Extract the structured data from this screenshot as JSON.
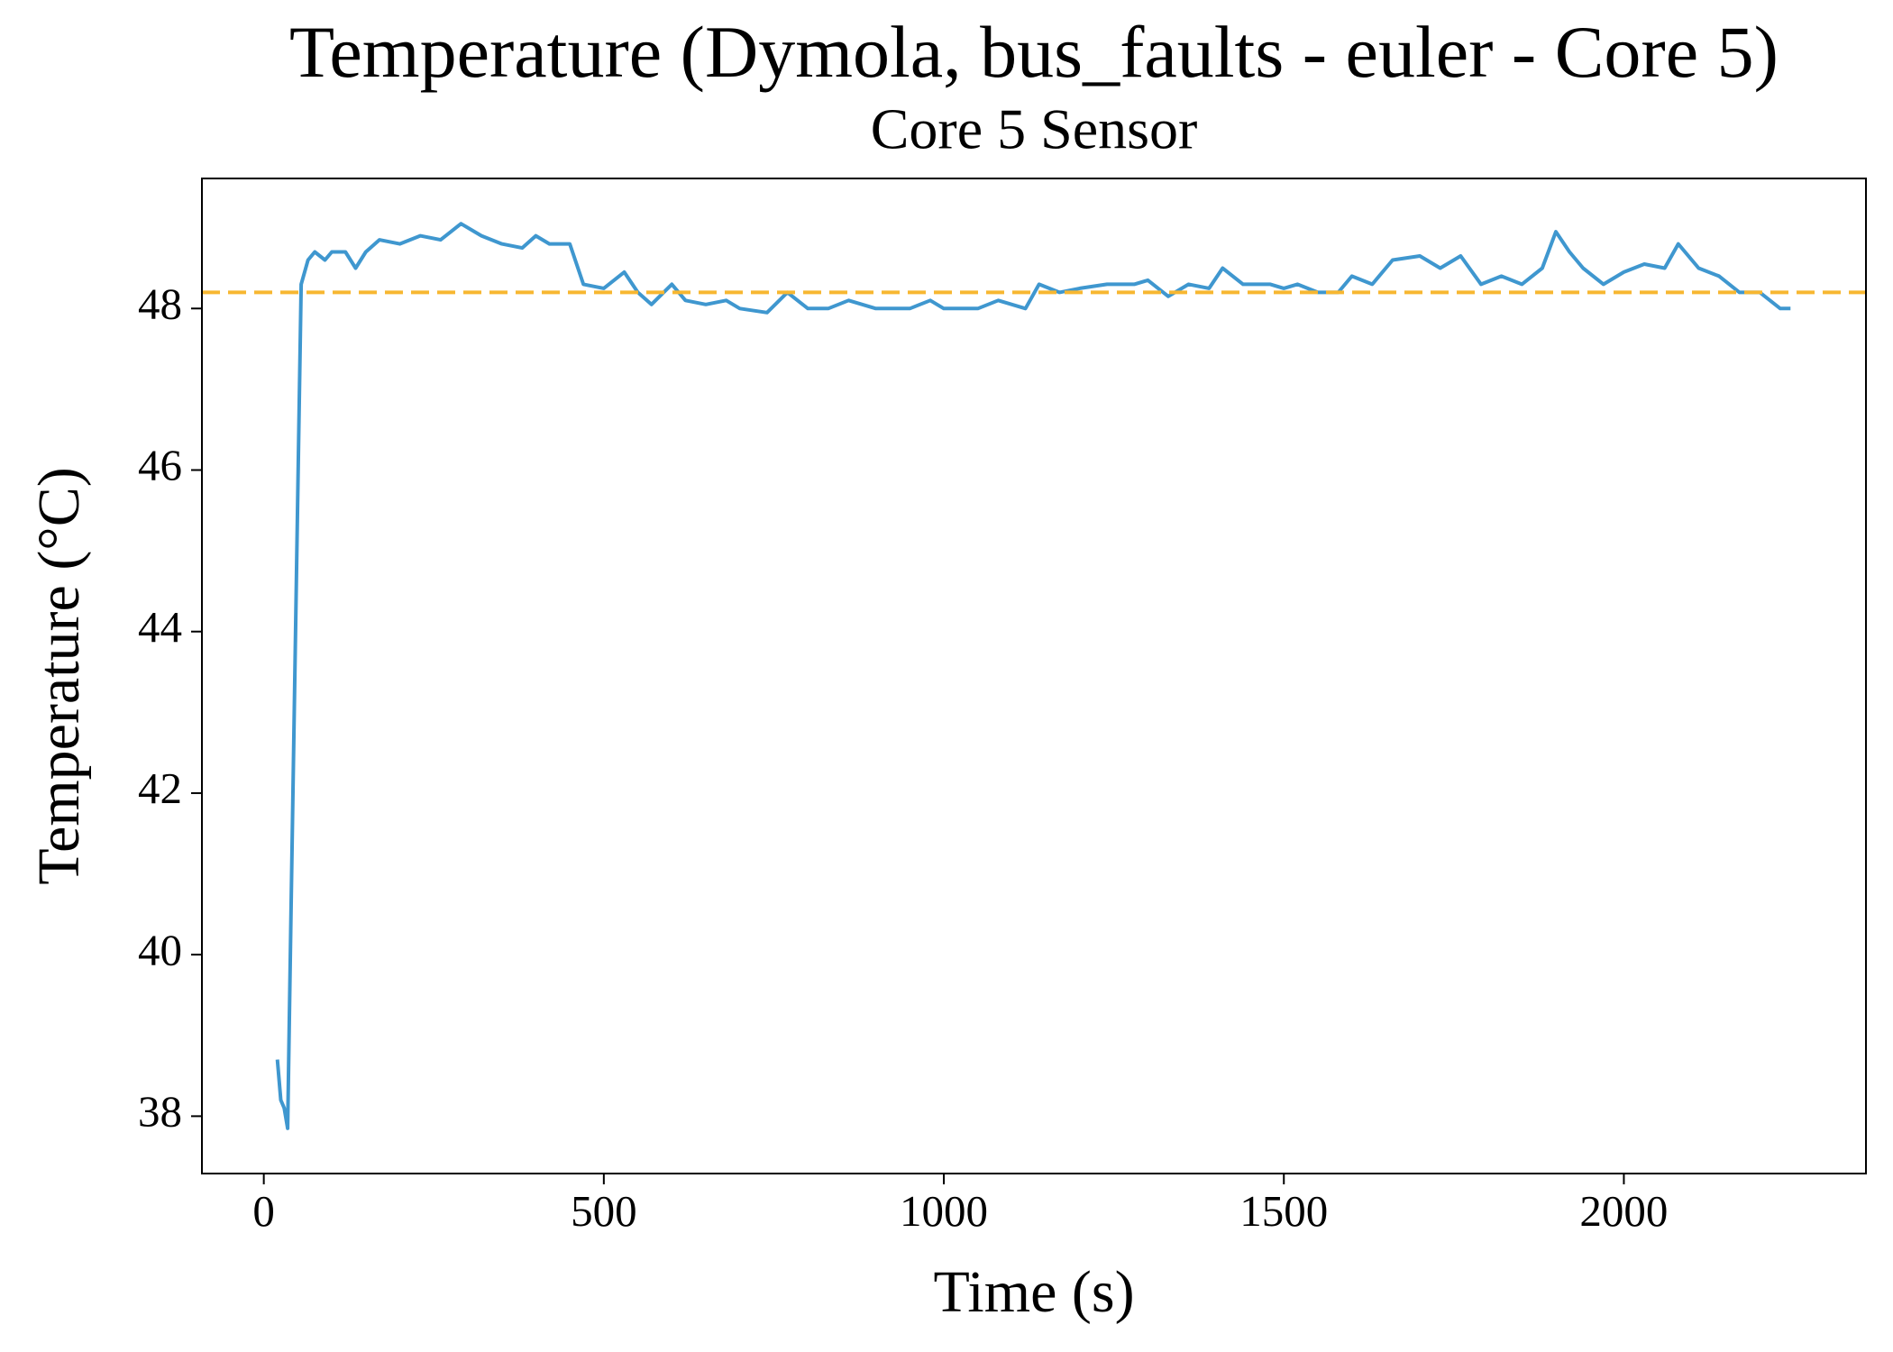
{
  "chart_data": {
    "type": "line",
    "title": "Temperature (Dymola, bus_faults - euler - Core 5)",
    "subtitle": "Core 5 Sensor",
    "xlabel": "Time (s)",
    "ylabel": "Temperature (°C)",
    "x": [
      20,
      25,
      30,
      35,
      40,
      55,
      65,
      75,
      90,
      100,
      120,
      135,
      150,
      170,
      200,
      230,
      260,
      290,
      320,
      350,
      380,
      400,
      420,
      450,
      470,
      500,
      530,
      550,
      570,
      600,
      620,
      650,
      680,
      700,
      740,
      770,
      800,
      830,
      860,
      900,
      950,
      980,
      1000,
      1050,
      1080,
      1120,
      1140,
      1170,
      1200,
      1240,
      1280,
      1300,
      1330,
      1360,
      1390,
      1410,
      1440,
      1480,
      1500,
      1520,
      1550,
      1580,
      1600,
      1630,
      1660,
      1700,
      1730,
      1760,
      1790,
      1820,
      1850,
      1880,
      1900,
      1920,
      1940,
      1970,
      2000,
      2030,
      2060,
      2080,
      2110,
      2140,
      2170,
      2200,
      2230,
      2245
    ],
    "series": [
      {
        "name": "Core 5 Sensor",
        "color": "#3f97cf",
        "values": [
          38.7,
          38.2,
          38.1,
          37.85,
          40.5,
          48.3,
          48.6,
          48.7,
          48.6,
          48.7,
          48.7,
          48.5,
          48.7,
          48.85,
          48.8,
          48.9,
          48.85,
          49.05,
          48.9,
          48.8,
          48.75,
          48.9,
          48.8,
          48.8,
          48.3,
          48.25,
          48.45,
          48.2,
          48.05,
          48.3,
          48.1,
          48.05,
          48.1,
          48.0,
          47.95,
          48.2,
          48.0,
          48.0,
          48.1,
          48.0,
          48.0,
          48.1,
          48.0,
          48.0,
          48.1,
          48.0,
          48.3,
          48.2,
          48.25,
          48.3,
          48.3,
          48.35,
          48.15,
          48.3,
          48.25,
          48.5,
          48.3,
          48.3,
          48.25,
          48.3,
          48.2,
          48.2,
          48.4,
          48.3,
          48.6,
          48.65,
          48.5,
          48.65,
          48.3,
          48.4,
          48.3,
          48.5,
          48.95,
          48.7,
          48.5,
          48.3,
          48.45,
          48.55,
          48.5,
          48.8,
          48.5,
          48.4,
          48.2,
          48.2,
          48.0,
          48.0
        ]
      }
    ],
    "hline": {
      "value": 48.2,
      "color": "#f7b731",
      "style": "dashed"
    },
    "xlim": [
      -91,
      2356
    ],
    "ylim": [
      37.29,
      49.61
    ],
    "xticks": [
      0,
      500,
      1000,
      1500,
      2000
    ],
    "yticks": [
      38,
      40,
      42,
      44,
      46,
      48
    ]
  }
}
